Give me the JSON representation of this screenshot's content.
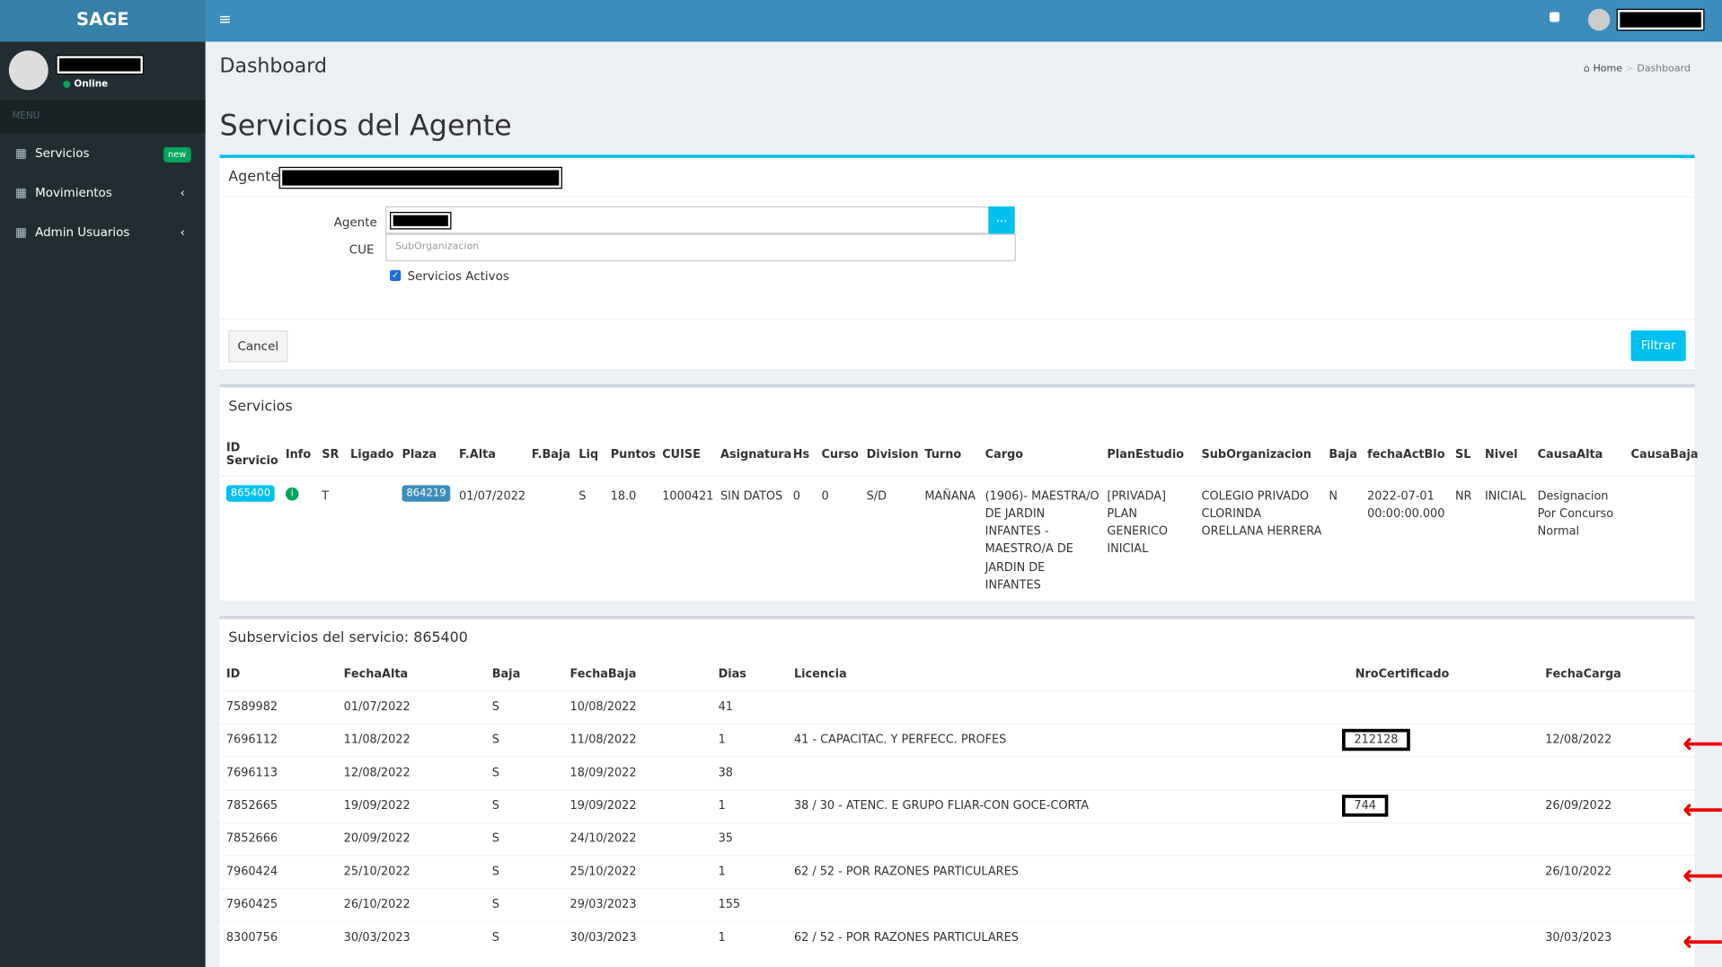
{
  "header": {
    "brand": "SAGE"
  },
  "sidebar": {
    "status": "Online",
    "menu_label": "MENU",
    "items": [
      {
        "label": "Servicios",
        "badge": "new"
      },
      {
        "label": "Movimientos"
      },
      {
        "label": "Admin Usuarios"
      }
    ]
  },
  "page": {
    "title": "Dashboard",
    "breadcrumb": [
      "Home",
      "Dashboard"
    ],
    "heading": "Servicios del Agente"
  },
  "filter": {
    "title": "Agente",
    "agente_label": "Agente",
    "search_button": "...",
    "cue_label": "CUE",
    "cue_placeholder": "SubOrganizacion",
    "checkbox_label": "Servicios Activos",
    "cancel": "Cancel",
    "submit": "Filtrar"
  },
  "servicios": {
    "title": "Servicios",
    "columns": [
      "ID Servicio",
      "Info",
      "SR",
      "Ligado",
      "Plaza",
      "F.Alta",
      "F.Baja",
      "Liq",
      "Puntos",
      "CUISE",
      "Asignatura",
      "Hs",
      "Curso",
      "Division",
      "Turno",
      "Cargo",
      "PlanEstudio",
      "SubOrganizacion",
      "Baja",
      "fechaActBlo",
      "SL",
      "Nivel",
      "CausaAlta",
      "CausaBaja"
    ],
    "rows": [
      [
        "865400",
        null,
        "T",
        null,
        "864219",
        "01/07/2022",
        null,
        "S",
        "18.0",
        "1000421",
        "SIN DATOS",
        "0",
        "0",
        "S/D",
        "MAÑANA",
        "(1906)- MAESTRA/O DE JARDIN INFANTES - MAESTRO/A DE JARDIN DE INFANTES",
        "[PRIVADA] PLAN GENERICO INICIAL",
        "COLEGIO PRIVADO CLORINDA ORELLANA HERRERA",
        "N",
        "2022-07-01 00:00:00.000",
        "NR",
        "INICIAL",
        "Designacion Por Concurso Normal",
        null
      ]
    ]
  },
  "subservicios": {
    "title": "Subservicios del servicio: 865400",
    "columns": [
      "ID",
      "FechaAlta",
      "Baja",
      "FechaBaja",
      "Dias",
      "Licencia",
      "NroCertificado",
      "FechaCarga"
    ],
    "rows": [
      [
        "7589982",
        "01/07/2022",
        "S",
        "10/08/2022",
        "41",
        null,
        null,
        null
      ],
      [
        "7696112",
        "11/08/2022",
        "S",
        "11/08/2022",
        "1",
        "41 - CAPACITAC. Y PERFECC. PROFES",
        "212128",
        "12/08/2022"
      ],
      [
        "7696113",
        "12/08/2022",
        "S",
        "18/09/2022",
        "38",
        null,
        null,
        null
      ],
      [
        "7852665",
        "19/09/2022",
        "S",
        "19/09/2022",
        "1",
        "38 / 30 - ATENC. E GRUPO FLIAR-CON GOCE-CORTA",
        "744",
        "26/09/2022"
      ],
      [
        "7852666",
        "20/09/2022",
        "S",
        "24/10/2022",
        "35",
        null,
        null,
        null
      ],
      [
        "7960424",
        "25/10/2022",
        "S",
        "25/10/2022",
        "1",
        "62 / 52 - POR RAZONES PARTICULARES",
        null,
        "26/10/2022"
      ],
      [
        "7960425",
        "26/10/2022",
        "S",
        "29/03/2023",
        "155",
        null,
        null,
        null
      ],
      [
        "8300756",
        "30/03/2023",
        "S",
        "30/03/2023",
        "1",
        "62 / 52 - POR RAZONES PARTICULARES",
        null,
        "30/03/2023"
      ]
    ]
  }
}
